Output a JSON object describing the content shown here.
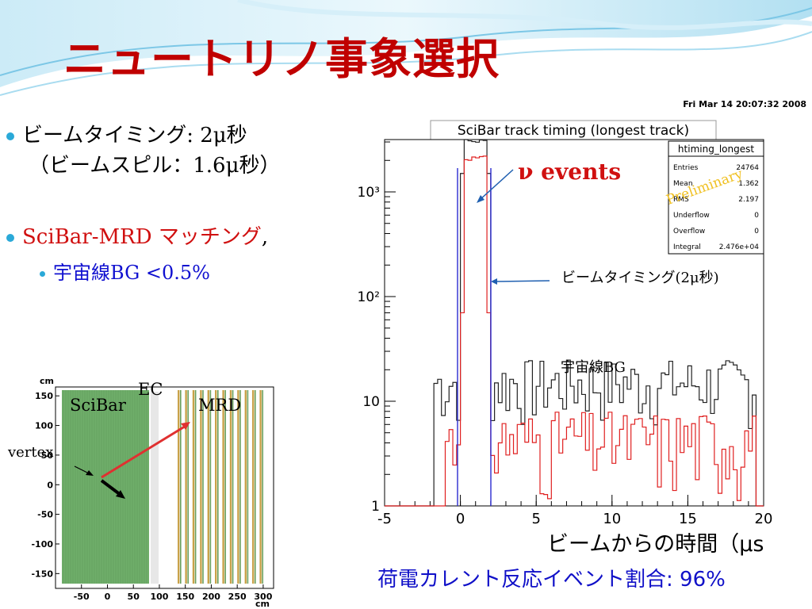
{
  "slide": {
    "title": "ニュートリノ事象選択",
    "bullets": [
      {
        "line1": "ビームタイミング: 2μ秒",
        "line2": "（ビームスピル：1.6μ秒）"
      },
      {
        "label_red": "SciBar-MRD マッチング",
        "label_suffix": ","
      },
      {
        "sub": "宇宙線BG <0.5%"
      }
    ],
    "bottom_axis_text": "ビームからの時間（μs",
    "cc_ratio": "荷電カレント反応イベント割合: 96%"
  },
  "histogram": {
    "timestamp": "Fri Mar 14 20:07:32 2008",
    "title": "SciBar track timing (longest track)",
    "stats": {
      "name": "htiming_longest",
      "rows": [
        {
          "k": "Entries",
          "v": "24764"
        },
        {
          "k": "Mean",
          "v": "1.362"
        },
        {
          "k": "RMS",
          "v": "2.197"
        },
        {
          "k": "Underflow",
          "v": "0"
        },
        {
          "k": "Overflow",
          "v": "0"
        },
        {
          "k": "Integral",
          "v": "2.476e+04"
        }
      ]
    },
    "preliminary": "Preliminary",
    "annot_nu": "ν events",
    "annot_beam": "ビームタイミング(2μ秒)",
    "annot_bg": "宇宙線BG",
    "x_ticks": [
      "-5",
      "0",
      "5",
      "10",
      "15",
      "20"
    ],
    "y_ticks": [
      "1",
      "10",
      "10²",
      "10³"
    ],
    "xlim": [
      -5,
      20
    ],
    "ylog_decades": [
      0,
      3.5
    ]
  },
  "detector": {
    "ylabel": "cm",
    "xlabel": "cm",
    "x_ticks": [
      "-50",
      "0",
      "50",
      "100",
      "150",
      "200",
      "250",
      "300"
    ],
    "y_ticks": [
      "150",
      "100",
      "50",
      "0",
      "-50",
      "-100",
      "-150"
    ],
    "label_scibar": "SciBar",
    "label_ec": "EC",
    "label_mrd": "MRD",
    "label_vertex": "vertex"
  }
}
